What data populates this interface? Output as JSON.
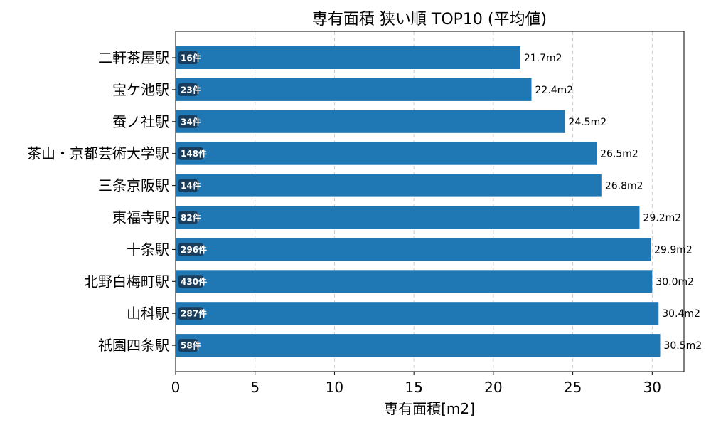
{
  "chart_data": {
    "type": "bar",
    "orientation": "horizontal",
    "title": "専有面積 狭い順 TOP10 (平均値)",
    "xlabel": "専有面積[m2]",
    "ylabel": "",
    "xlim": [
      0,
      32
    ],
    "xticks": [
      "0",
      "5",
      "10",
      "15",
      "20",
      "25",
      "30"
    ],
    "grid": "vertical-dashed",
    "categories": [
      "二軒茶屋駅",
      "宝ケ池駅",
      "蚕ノ社駅",
      "茶山・京都芸術大学駅",
      "三条京阪駅",
      "東福寺駅",
      "十条駅",
      "北野白梅町駅",
      "山科駅",
      "祇園四条駅"
    ],
    "values": [
      21.7,
      22.4,
      24.5,
      26.5,
      26.8,
      29.2,
      29.9,
      30.0,
      30.4,
      30.5
    ],
    "value_labels": [
      "21.7m2",
      "22.4m2",
      "24.5m2",
      "26.5m2",
      "26.8m2",
      "29.2m2",
      "29.9m2",
      "30.0m2",
      "30.4m2",
      "30.5m2"
    ],
    "count_labels": [
      "16件",
      "23件",
      "34件",
      "148件",
      "14件",
      "82件",
      "296件",
      "430件",
      "287件",
      "58件"
    ],
    "colors": {
      "bar": "#1f77b4",
      "badge": "#1a3d5c",
      "grid": "#cccccc"
    }
  }
}
